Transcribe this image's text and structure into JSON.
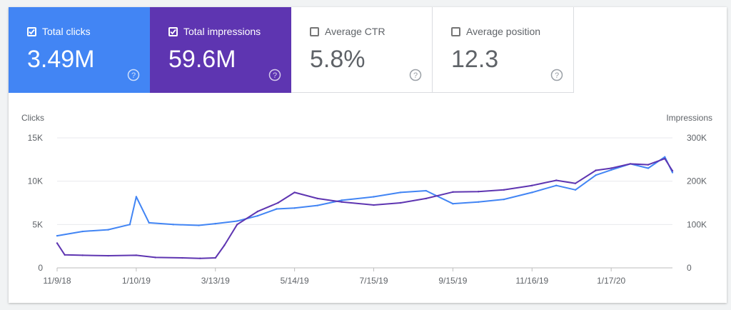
{
  "cards": [
    {
      "label": "Total clicks",
      "value": "3.49M",
      "selected": true,
      "color": "#4285f4"
    },
    {
      "label": "Total impressions",
      "value": "59.6M",
      "selected": true,
      "color": "#5e35b1"
    },
    {
      "label": "Average CTR",
      "value": "5.8%",
      "selected": false,
      "color": "#ffffff"
    },
    {
      "label": "Average position",
      "value": "12.3",
      "selected": false,
      "color": "#ffffff"
    }
  ],
  "icons": {
    "checkbox_checked": "check-icon",
    "help": "help-circle-icon"
  },
  "chart_data": {
    "type": "line",
    "title": "",
    "x_tick_labels": [
      "11/9/18",
      "1/10/19",
      "3/13/19",
      "5/14/19",
      "7/15/19",
      "9/15/19",
      "11/16/19",
      "1/17/20"
    ],
    "x_range": [
      "11/9/18",
      "3/5/20"
    ],
    "grid": true,
    "left_axis": {
      "label": "Clicks",
      "ticks": [
        "0",
        "5K",
        "10K",
        "15K"
      ],
      "ylim": [
        0,
        15000
      ]
    },
    "right_axis": {
      "label": "Impressions",
      "ticks": [
        "0",
        "100K",
        "200K",
        "300K"
      ],
      "ylim": [
        0,
        300000
      ]
    },
    "series": [
      {
        "name": "Total clicks",
        "axis": "left",
        "color": "#4285f4",
        "x": [
          "11/9/18",
          "11/29/18",
          "12/19/18",
          "1/5/19",
          "1/10/19",
          "1/20/19",
          "2/8/19",
          "2/28/19",
          "3/13/19",
          "3/30/19",
          "4/15/19",
          "4/30/19",
          "5/14/19",
          "6/1/19",
          "6/20/19",
          "7/15/19",
          "8/5/19",
          "8/25/19",
          "9/15/19",
          "10/5/19",
          "10/25/19",
          "11/16/19",
          "12/5/19",
          "12/20/19",
          "1/5/20",
          "1/17/20",
          "2/1/20",
          "2/15/20",
          "2/28/20",
          "3/5/20"
        ],
        "values": [
          3700,
          4200,
          4400,
          5000,
          8200,
          5200,
          5000,
          4900,
          5100,
          5400,
          6000,
          6800,
          6900,
          7200,
          7800,
          8200,
          8700,
          8900,
          7400,
          7600,
          7900,
          8700,
          9500,
          9000,
          10700,
          11300,
          12000,
          11500,
          12800,
          11000
        ]
      },
      {
        "name": "Total impressions",
        "axis": "right",
        "color": "#5e35b1",
        "x": [
          "11/9/18",
          "11/15/18",
          "11/29/18",
          "12/19/18",
          "1/10/19",
          "1/25/19",
          "2/15/19",
          "3/1/19",
          "3/13/19",
          "3/20/19",
          "3/30/19",
          "4/15/19",
          "5/1/19",
          "5/14/19",
          "6/1/19",
          "6/20/19",
          "7/15/19",
          "8/5/19",
          "8/25/19",
          "9/15/19",
          "10/5/19",
          "10/25/19",
          "11/16/19",
          "12/5/19",
          "12/20/19",
          "1/5/20",
          "1/17/20",
          "2/1/20",
          "2/15/20",
          "2/28/20",
          "3/5/20"
        ],
        "values": [
          57000,
          30000,
          29000,
          28000,
          29000,
          24000,
          23000,
          22000,
          23000,
          52000,
          100000,
          130000,
          150000,
          174000,
          160000,
          152000,
          145000,
          150000,
          160000,
          175000,
          176000,
          180000,
          190000,
          202000,
          195000,
          225000,
          230000,
          240000,
          238000,
          252000,
          224000
        ]
      }
    ]
  }
}
